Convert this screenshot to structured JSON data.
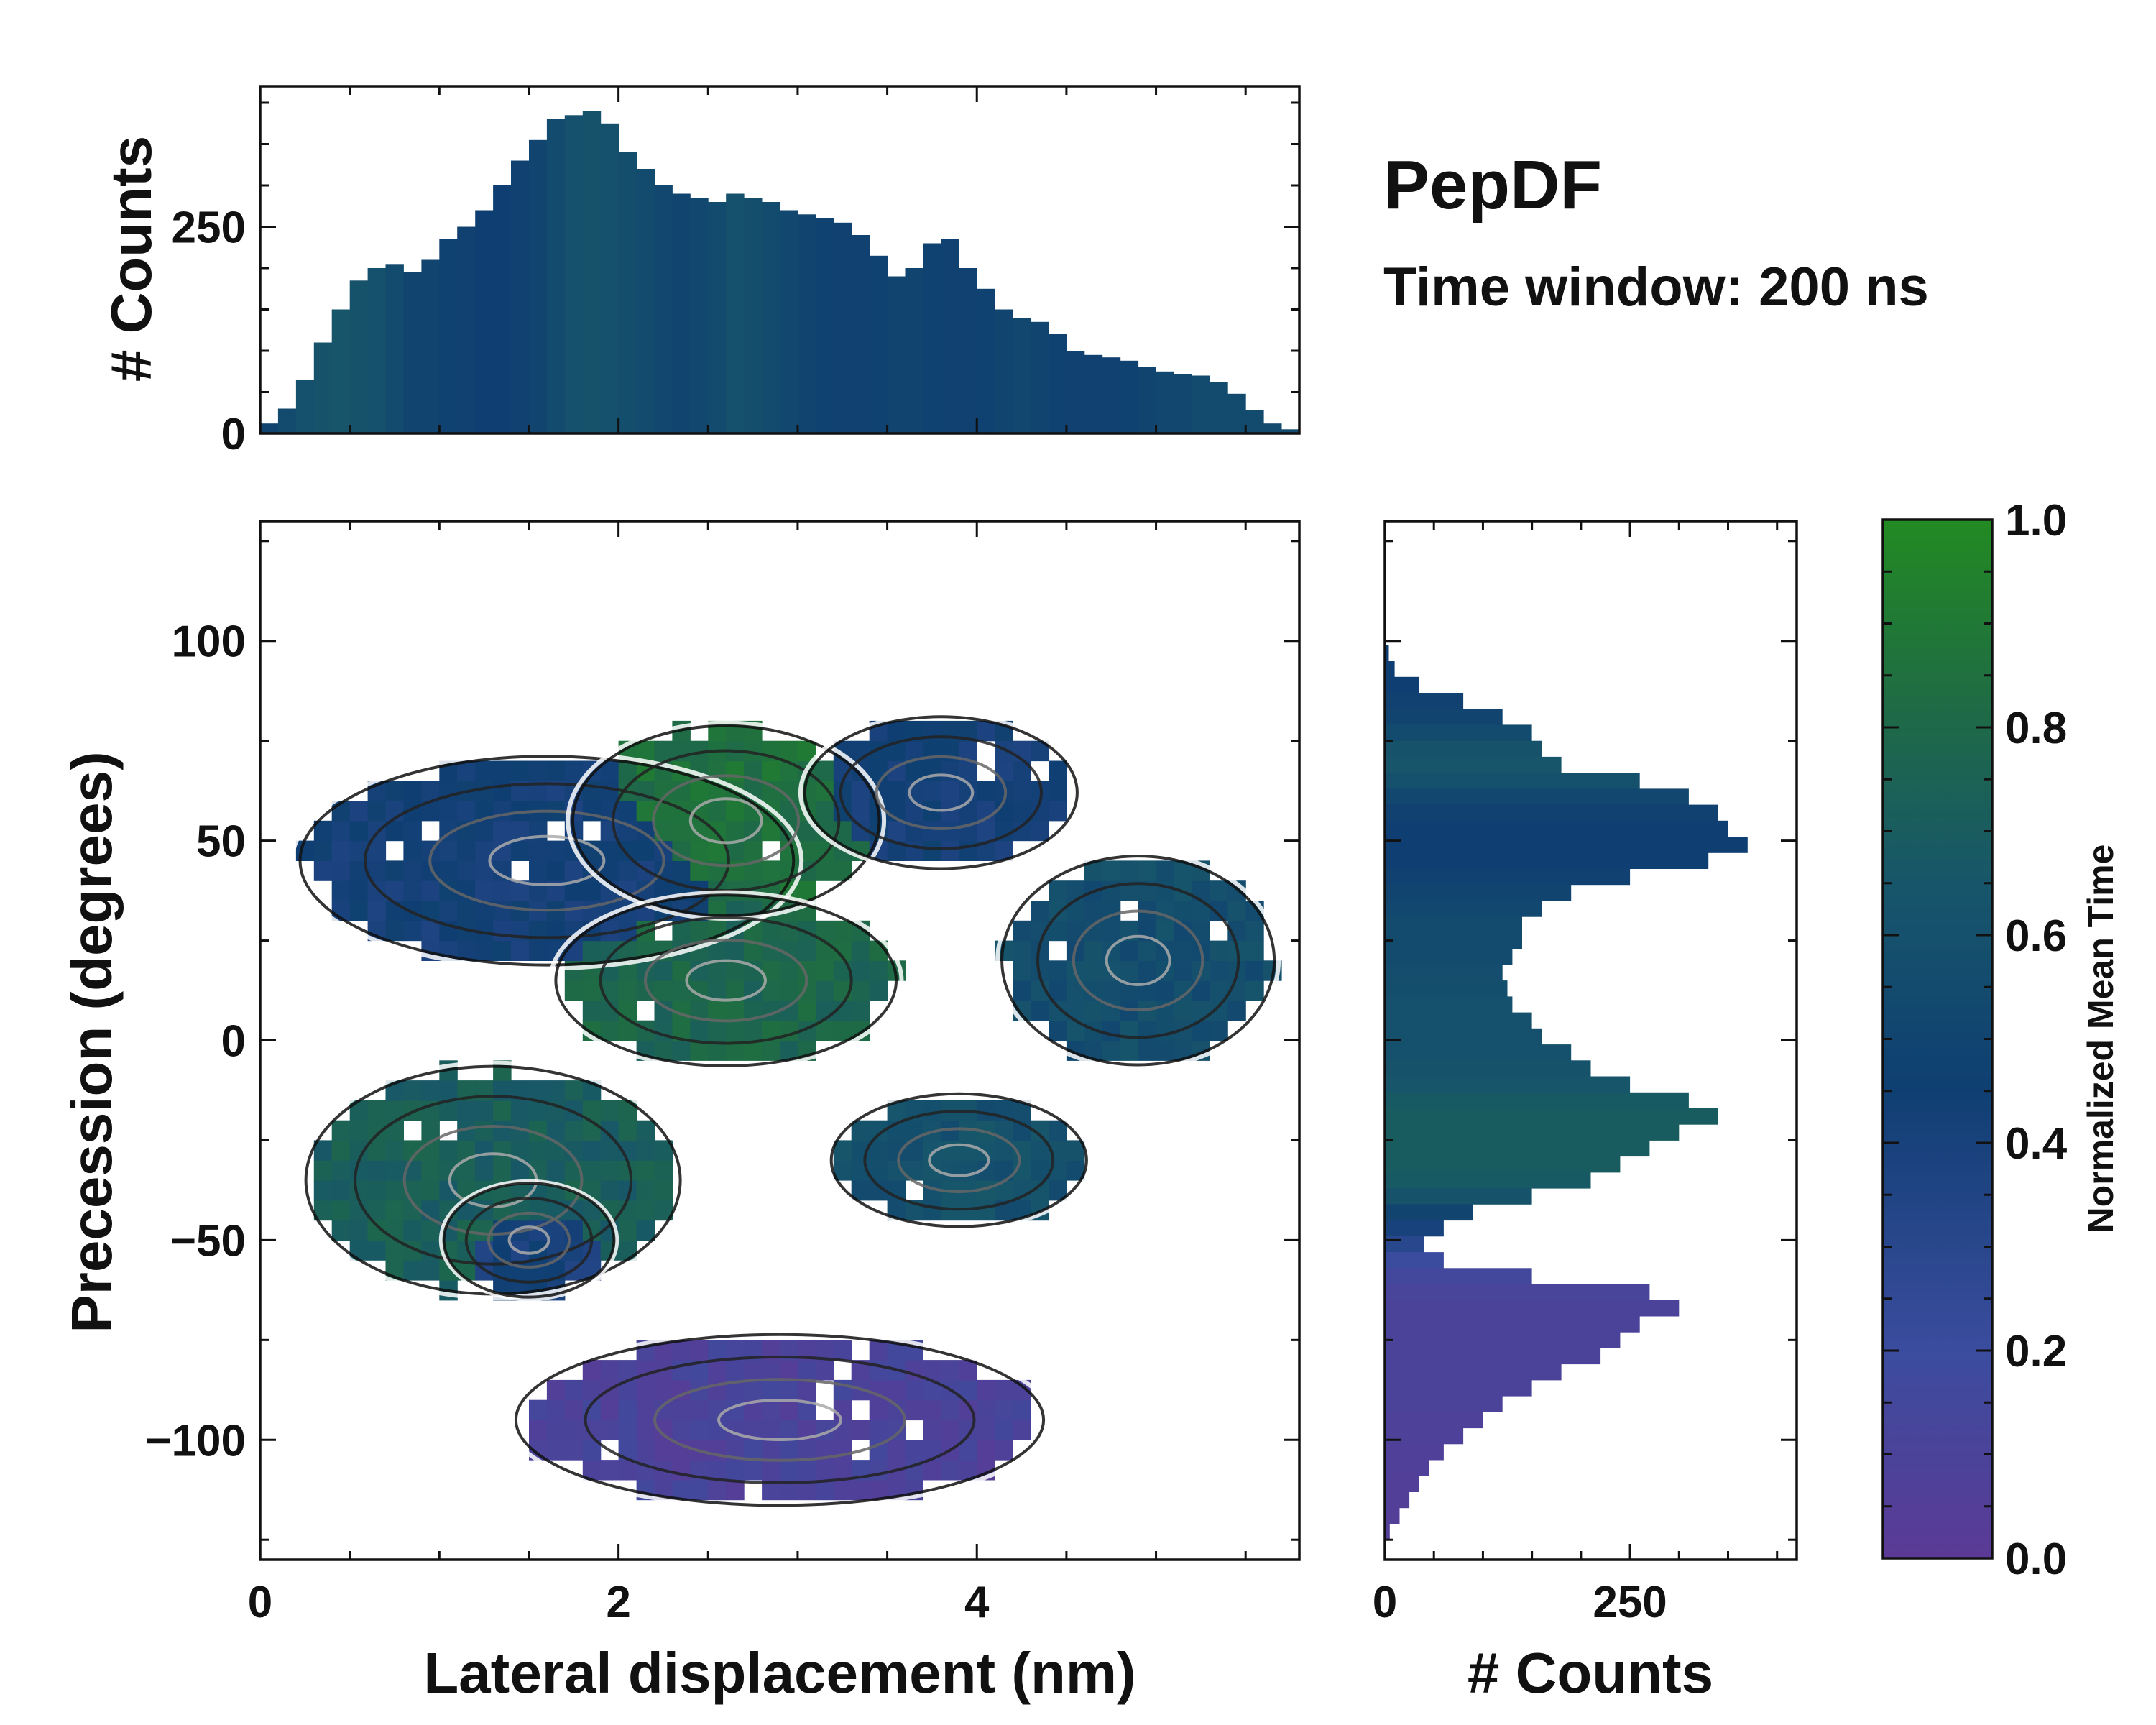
{
  "chart_data": {
    "type": "heatmap",
    "title": "PepDF",
    "subtitle": "Time window: 200 ns",
    "main_panel": {
      "xlabel": "Lateral displacement (nm)",
      "ylabel": "Precession (degrees)",
      "xlim": [
        0,
        5.8
      ],
      "ylim": [
        -130,
        130
      ],
      "xticks": [
        0,
        2,
        4
      ],
      "xtick_labels": [
        "0",
        "2",
        "4"
      ],
      "yticks": [
        100,
        50,
        0,
        -50,
        -100
      ],
      "ytick_labels": [
        "100",
        "50",
        "0",
        "−50",
        "−100"
      ],
      "colorbar_label": "Normalized Mean Time",
      "regions": [
        {
          "name": "top-left cluster",
          "x_center": 1.6,
          "y_center": 45,
          "x_width": 2.9,
          "y_width": 55,
          "mean_time": 0.42
        },
        {
          "name": "top-middle cluster",
          "x_center": 2.6,
          "y_center": 55,
          "x_width": 1.8,
          "y_width": 50,
          "mean_time": 0.85
        },
        {
          "name": "top-right cluster",
          "x_center": 3.8,
          "y_center": 62,
          "x_width": 1.6,
          "y_width": 40,
          "mean_time": 0.42
        },
        {
          "name": "middle cluster",
          "x_center": 2.6,
          "y_center": 15,
          "x_width": 2.0,
          "y_width": 45,
          "mean_time": 0.78
        },
        {
          "name": "right cluster",
          "x_center": 4.9,
          "y_center": 20,
          "x_width": 1.6,
          "y_width": 55,
          "mean_time": 0.58
        },
        {
          "name": "lower-left cluster",
          "x_center": 1.3,
          "y_center": -35,
          "x_width": 2.2,
          "y_width": 60,
          "mean_time": 0.72
        },
        {
          "name": "lower-left core",
          "x_center": 1.5,
          "y_center": -50,
          "x_width": 1.0,
          "y_width": 30,
          "mean_time": 0.4
        },
        {
          "name": "lower-right cluster",
          "x_center": 3.9,
          "y_center": -30,
          "x_width": 1.5,
          "y_width": 35,
          "mean_time": 0.6
        },
        {
          "name": "bottom cluster",
          "x_center": 2.9,
          "y_center": -95,
          "x_width": 3.1,
          "y_width": 45,
          "mean_time": 0.1
        }
      ]
    },
    "top_hist": {
      "ylabel": "# Counts",
      "yticks": [
        0,
        250
      ],
      "ytick_labels": [
        "0",
        "250"
      ],
      "ylim": [
        0,
        420
      ],
      "bin_centers_nm": [
        0.05,
        0.15,
        0.25,
        0.35,
        0.45,
        0.55,
        0.65,
        0.75,
        0.85,
        0.95,
        1.05,
        1.15,
        1.25,
        1.35,
        1.45,
        1.55,
        1.65,
        1.75,
        1.85,
        1.95,
        2.05,
        2.15,
        2.25,
        2.35,
        2.45,
        2.55,
        2.65,
        2.75,
        2.85,
        2.95,
        3.05,
        3.15,
        3.25,
        3.35,
        3.45,
        3.55,
        3.65,
        3.75,
        3.85,
        3.95,
        4.05,
        4.15,
        4.25,
        4.35,
        4.45,
        4.55,
        4.65,
        4.75,
        4.85,
        4.95,
        5.05,
        5.15,
        5.25,
        5.35,
        5.45,
        5.55,
        5.65,
        5.75
      ],
      "counts": [
        12,
        30,
        65,
        110,
        150,
        185,
        200,
        205,
        195,
        210,
        235,
        250,
        270,
        300,
        330,
        355,
        380,
        385,
        390,
        375,
        340,
        320,
        300,
        290,
        285,
        280,
        290,
        285,
        280,
        270,
        265,
        260,
        255,
        240,
        215,
        190,
        200,
        230,
        235,
        200,
        175,
        150,
        140,
        135,
        120,
        100,
        95,
        92,
        88,
        80,
        75,
        72,
        70,
        62,
        48,
        28,
        12,
        5
      ],
      "bar_mean_time": [
        0.5,
        0.55,
        0.6,
        0.62,
        0.65,
        0.62,
        0.6,
        0.55,
        0.5,
        0.5,
        0.48,
        0.47,
        0.45,
        0.45,
        0.47,
        0.5,
        0.55,
        0.6,
        0.62,
        0.6,
        0.58,
        0.55,
        0.52,
        0.5,
        0.52,
        0.55,
        0.6,
        0.58,
        0.55,
        0.52,
        0.5,
        0.48,
        0.47,
        0.47,
        0.48,
        0.5,
        0.5,
        0.48,
        0.47,
        0.47,
        0.48,
        0.5,
        0.52,
        0.5,
        0.48,
        0.47,
        0.47,
        0.47,
        0.48,
        0.5,
        0.52,
        0.53,
        0.55,
        0.55,
        0.55,
        0.55,
        0.55,
        0.55
      ]
    },
    "right_hist": {
      "xlabel": "# Counts",
      "xticks": [
        0,
        250
      ],
      "xtick_labels": [
        "0",
        "250"
      ],
      "xlim": [
        0,
        420
      ],
      "bin_centers_deg": [
        97,
        93,
        89,
        85,
        81,
        77,
        73,
        69,
        65,
        61,
        57,
        53,
        49,
        45,
        41,
        37,
        33,
        29,
        25,
        21,
        17,
        13,
        9,
        5,
        1,
        -3,
        -7,
        -11,
        -15,
        -19,
        -23,
        -27,
        -31,
        -35,
        -39,
        -43,
        -47,
        -51,
        -55,
        -59,
        -63,
        -67,
        -71,
        -75,
        -79,
        -83,
        -87,
        -91,
        -95,
        -99,
        -103,
        -107,
        -111,
        -115,
        -119,
        -123
      ],
      "counts": [
        4,
        10,
        35,
        80,
        120,
        150,
        160,
        180,
        260,
        310,
        340,
        350,
        370,
        330,
        250,
        190,
        160,
        140,
        140,
        130,
        120,
        125,
        130,
        150,
        160,
        190,
        210,
        250,
        310,
        340,
        300,
        270,
        240,
        210,
        150,
        90,
        60,
        40,
        60,
        150,
        270,
        300,
        260,
        240,
        220,
        180,
        150,
        120,
        100,
        80,
        60,
        45,
        35,
        25,
        15,
        5
      ],
      "bar_mean_time": [
        0.45,
        0.45,
        0.45,
        0.47,
        0.5,
        0.55,
        0.62,
        0.65,
        0.6,
        0.52,
        0.47,
        0.45,
        0.45,
        0.45,
        0.47,
        0.5,
        0.52,
        0.55,
        0.55,
        0.55,
        0.57,
        0.58,
        0.6,
        0.6,
        0.6,
        0.6,
        0.62,
        0.65,
        0.68,
        0.7,
        0.7,
        0.7,
        0.7,
        0.68,
        0.62,
        0.5,
        0.4,
        0.3,
        0.2,
        0.15,
        0.12,
        0.1,
        0.1,
        0.1,
        0.1,
        0.1,
        0.1,
        0.1,
        0.08,
        0.08,
        0.07,
        0.07,
        0.06,
        0.06,
        0.05,
        0.05
      ]
    },
    "colorbar": {
      "label": "Normalized Mean Time",
      "range": [
        0.0,
        1.0
      ],
      "ticks": [
        0.0,
        0.2,
        0.4,
        0.6,
        0.8,
        1.0
      ],
      "tick_labels": [
        "0.0",
        "0.2",
        "0.4",
        "0.6",
        "0.8",
        "1.0"
      ],
      "colors": [
        "#5b3a96",
        "#3b4c9e",
        "#0f3f72",
        "#17566a",
        "#1f6b45",
        "#228a22"
      ]
    }
  }
}
